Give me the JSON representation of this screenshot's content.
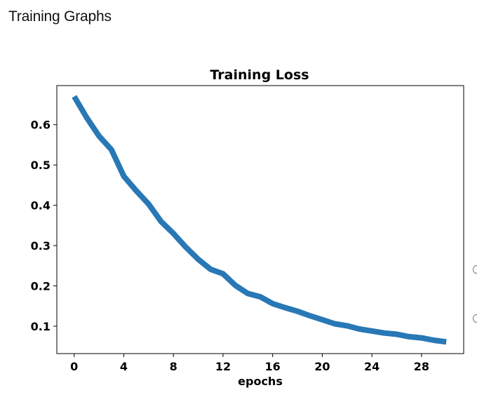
{
  "page": {
    "heading": "Training Graphs"
  },
  "chart_data": {
    "type": "line",
    "title": "Training Loss",
    "xlabel": "epochs",
    "ylabel": "",
    "xlim": [
      -1.4,
      31.4
    ],
    "ylim": [
      0.032,
      0.697
    ],
    "x_ticks": [
      0,
      4,
      8,
      12,
      16,
      20,
      24,
      28
    ],
    "y_ticks": [
      0.1,
      0.2,
      0.3,
      0.4,
      0.5,
      0.6
    ],
    "y_tick_labels": [
      "0.1",
      "0.2",
      "0.3",
      "0.4",
      "0.5",
      "0.6"
    ],
    "grid": false,
    "series": [
      {
        "color": "#2878b5",
        "x": [
          0,
          1,
          2,
          3,
          4,
          5,
          6,
          7,
          8,
          9,
          10,
          11,
          12,
          13,
          14,
          15,
          16,
          17,
          18,
          19,
          20,
          21,
          22,
          23,
          24,
          25,
          26,
          27,
          28,
          29,
          30
        ],
        "values": [
          0.67,
          0.618,
          0.572,
          0.538,
          0.472,
          0.436,
          0.403,
          0.36,
          0.33,
          0.296,
          0.266,
          0.241,
          0.23,
          0.201,
          0.181,
          0.173,
          0.156,
          0.146,
          0.137,
          0.126,
          0.116,
          0.106,
          0.101,
          0.093,
          0.088,
          0.083,
          0.08,
          0.074,
          0.071,
          0.065,
          0.061
        ]
      }
    ]
  }
}
